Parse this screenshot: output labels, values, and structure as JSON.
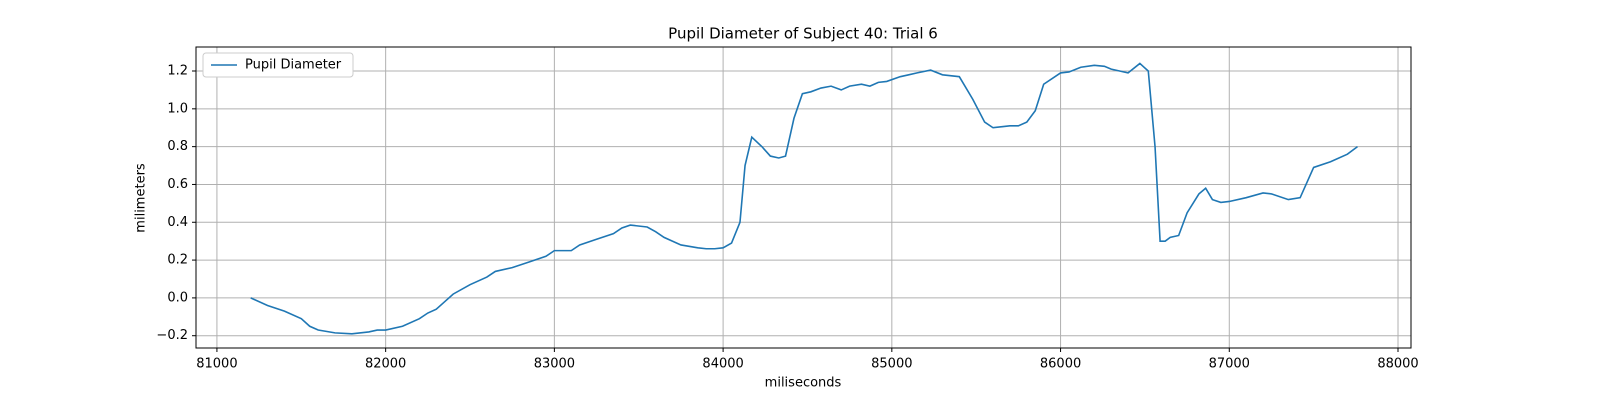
{
  "chart_data": {
    "type": "line",
    "title": "Pupil Diameter of Subject 40: Trial 6",
    "x_label": "miliseconds",
    "y_label": "milimeters",
    "x": [
      81200,
      81300,
      81400,
      81500,
      81550,
      81600,
      81700,
      81800,
      81900,
      81950,
      82000,
      82100,
      82200,
      82250,
      82300,
      82350,
      82400,
      82500,
      82600,
      82650,
      82750,
      82850,
      82950,
      83000,
      83100,
      83150,
      83250,
      83350,
      83400,
      83450,
      83550,
      83600,
      83650,
      83750,
      83850,
      83900,
      83950,
      84000,
      84050,
      84100,
      84130,
      84170,
      84230,
      84280,
      84330,
      84370,
      84420,
      84470,
      84520,
      84580,
      84640,
      84700,
      84750,
      84820,
      84870,
      84920,
      84970,
      85050,
      85100,
      85150,
      85230,
      85300,
      85400,
      85480,
      85550,
      85600,
      85700,
      85750,
      85800,
      85850,
      85900,
      86000,
      86050,
      86120,
      86200,
      86260,
      86300,
      86350,
      86400,
      86470,
      86520,
      86560,
      86590,
      86620,
      86650,
      86700,
      86750,
      86820,
      86860,
      86900,
      86950,
      87000,
      87100,
      87200,
      87250,
      87350,
      87420,
      87500,
      87600,
      87700,
      87760
    ],
    "series": [
      {
        "name": "Pupil Diameter",
        "color": "#1f77b4",
        "values": [
          0.0,
          -0.04,
          -0.07,
          -0.11,
          -0.15,
          -0.17,
          -0.185,
          -0.19,
          -0.18,
          -0.17,
          -0.17,
          -0.15,
          -0.11,
          -0.08,
          -0.06,
          -0.02,
          0.02,
          0.07,
          0.11,
          0.14,
          0.16,
          0.19,
          0.22,
          0.25,
          0.25,
          0.28,
          0.31,
          0.34,
          0.37,
          0.385,
          0.375,
          0.35,
          0.32,
          0.28,
          0.265,
          0.26,
          0.26,
          0.265,
          0.29,
          0.4,
          0.7,
          0.85,
          0.8,
          0.75,
          0.74,
          0.75,
          0.95,
          1.08,
          1.09,
          1.11,
          1.12,
          1.1,
          1.12,
          1.13,
          1.12,
          1.14,
          1.145,
          1.17,
          1.18,
          1.19,
          1.205,
          1.18,
          1.17,
          1.05,
          0.93,
          0.9,
          0.91,
          0.91,
          0.93,
          0.99,
          1.13,
          1.19,
          1.195,
          1.22,
          1.23,
          1.225,
          1.21,
          1.2,
          1.19,
          1.24,
          1.2,
          0.8,
          0.3,
          0.3,
          0.32,
          0.33,
          0.45,
          0.55,
          0.58,
          0.52,
          0.505,
          0.51,
          0.53,
          0.555,
          0.55,
          0.52,
          0.53,
          0.69,
          0.72,
          0.76,
          0.8
        ]
      }
    ],
    "xlim": [
      80876,
      88077
    ],
    "ylim": [
      -0.265,
      1.327
    ],
    "xticks": [
      81000,
      82000,
      83000,
      84000,
      85000,
      86000,
      87000,
      88000
    ],
    "yticks": [
      {
        "value": -0.2,
        "label": "−0.2"
      },
      {
        "value": 0,
        "label": "0.0"
      },
      0.2,
      0.4,
      0.6,
      0.8,
      {
        "value": 1,
        "label": "1.0"
      },
      1.2
    ],
    "grid": true,
    "legend": "upper-left"
  }
}
